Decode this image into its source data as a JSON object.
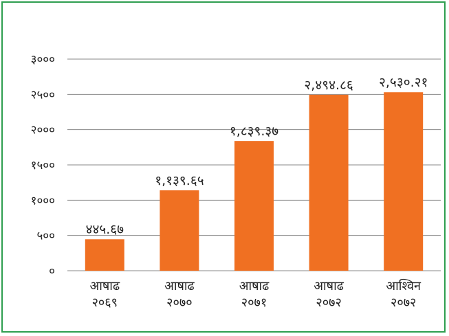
{
  "chart_data": {
    "type": "bar",
    "categories": [
      [
        "आषाढ",
        "२०६९"
      ],
      [
        "आषाढ",
        "२०७०"
      ],
      [
        "आषाढ",
        "२०७१"
      ],
      [
        "आषाढ",
        "२०७२"
      ],
      [
        "आश्विन",
        "२०७२"
      ]
    ],
    "values": [
      445.67,
      1139.65,
      1839.37,
      2494.86,
      2530.21
    ],
    "value_labels": [
      "४४५.६७",
      "१,१३९.६५",
      "१,८३९.३७",
      "२,४९४.८६",
      "२,५३०.२१"
    ],
    "yticks": [
      0,
      500,
      1000,
      1500,
      2000,
      2500,
      3000
    ],
    "ytick_labels": [
      "०",
      "५००",
      "१०००",
      "१५००",
      "२०००",
      "२५००",
      "३०००"
    ],
    "ylim": [
      0,
      3000
    ],
    "grid": true,
    "title": "",
    "xlabel": "",
    "ylabel": "",
    "bar_color": "#f07022",
    "grid_color": "#8a8a8a",
    "frame_color": "#2e9e4f"
  }
}
